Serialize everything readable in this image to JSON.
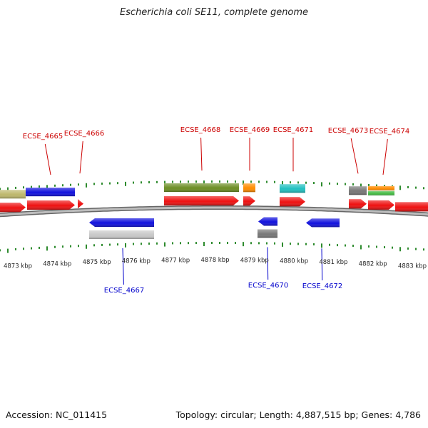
{
  "title": "Escherichia coli SE11, complete genome",
  "footer": {
    "accession": "Accession: NC_011415",
    "summary": "Topology: circular; Length: 4,887,515 bp; Genes: 4,786"
  },
  "map": {
    "unit": "kbp",
    "tick_labels": [
      "4873 kbp",
      "4874 kbp",
      "4875 kbp",
      "4876 kbp",
      "4877 kbp",
      "4878 kbp",
      "4879 kbp",
      "4880 kbp",
      "4881 kbp",
      "4882 kbp",
      "4883 kbp"
    ],
    "forward_labels": [
      "ECSE_4665",
      "ECSE_4666",
      "ECSE_4668",
      "ECSE_4669",
      "ECSE_4671",
      "ECSE_4673",
      "ECSE_4674"
    ],
    "reverse_labels": [
      "ECSE_4667",
      "ECSE_4670",
      "ECSE_4672"
    ],
    "colors": {
      "forward_label": "#cc0000",
      "reverse_label": "#0000cc",
      "tick": "#2e8b2e",
      "backbone": "#8a8a8a",
      "cds_red": "#ee1111",
      "cds_blue": "#1111dd",
      "olive": "#6b8e23",
      "khaki": "#bdb76b",
      "orange": "#ff8c00",
      "cyan": "#20c0c0",
      "gray": "#777777",
      "lightgray": "#c8c8c8",
      "green": "#44bb44"
    }
  }
}
